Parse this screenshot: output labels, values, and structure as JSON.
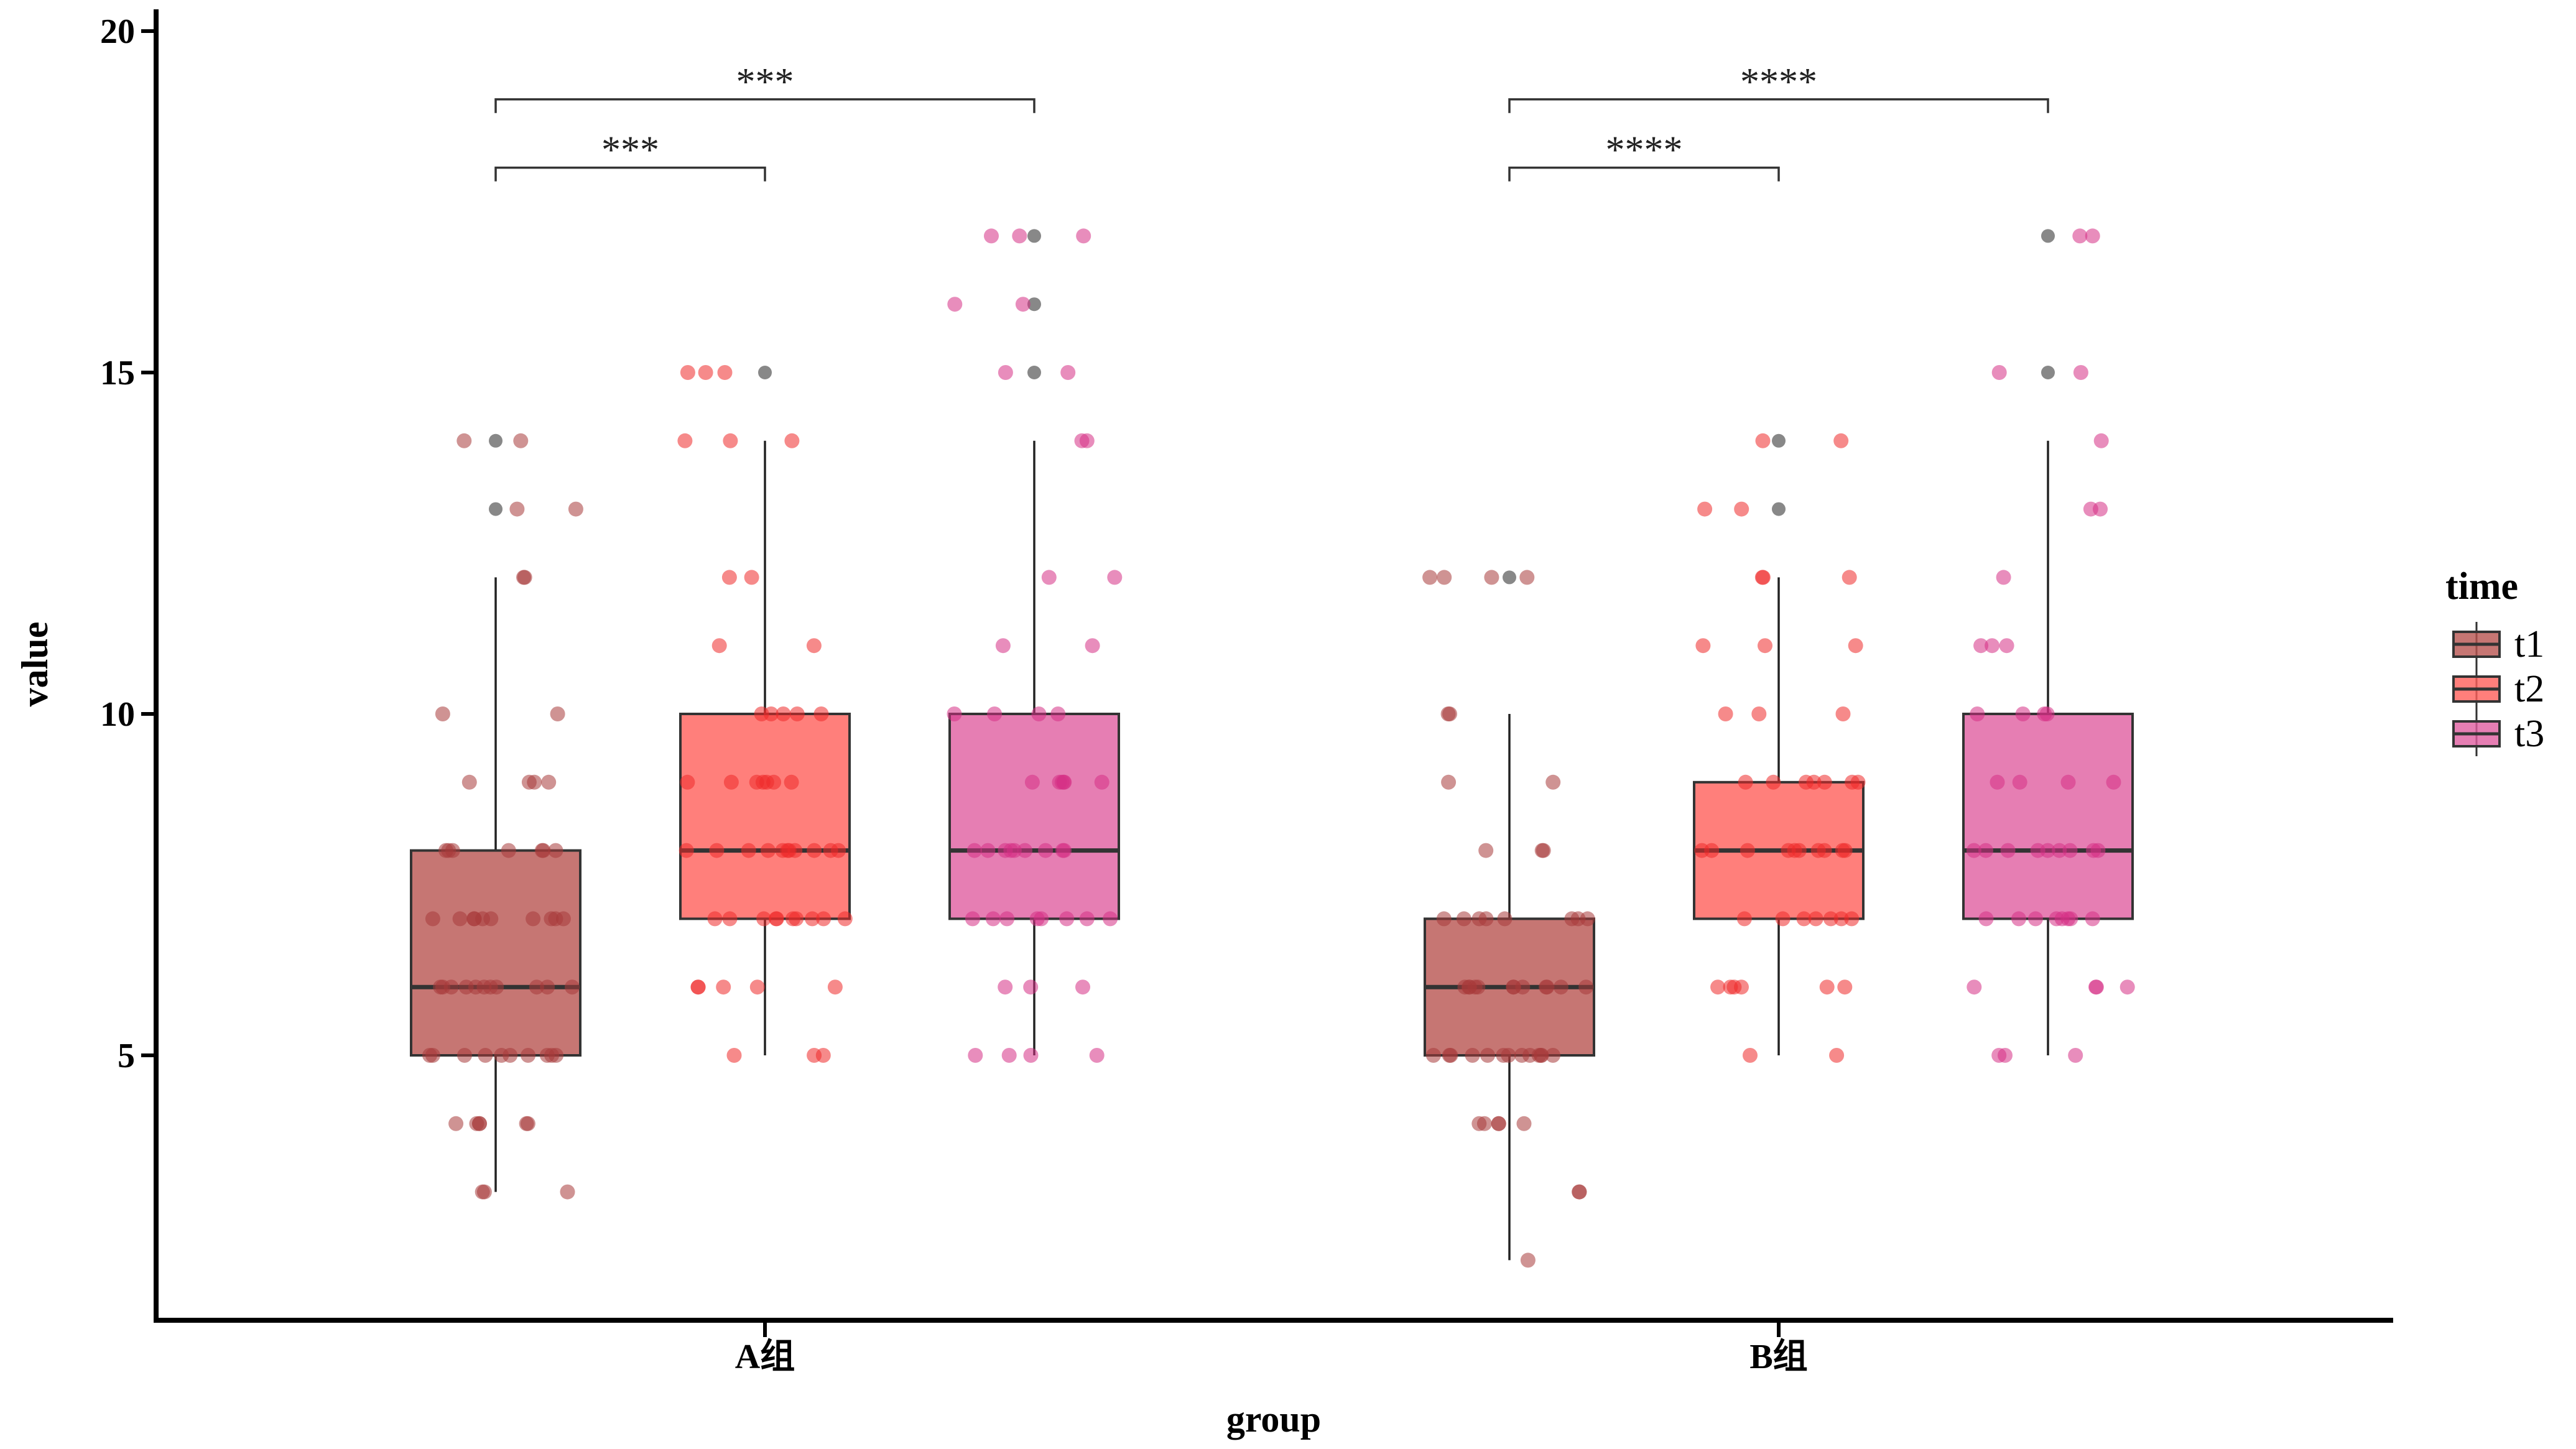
{
  "chart_data": {
    "type": "boxplot",
    "xlabel": "group",
    "ylabel": "value",
    "categories": [
      "A组",
      "B组"
    ],
    "y_ticks": [
      5,
      10,
      15,
      20
    ],
    "ylim": [
      1.5,
      20.2
    ],
    "legend": {
      "title": "time",
      "position": "right",
      "entries": [
        "t1",
        "t2",
        "t3"
      ]
    },
    "colors": {
      "t1": "#b85450",
      "t2": "#ff5f5a",
      "t3": "#e05ea0",
      "points_t1": "#a83a3a",
      "points_t2": "#ee2a2a",
      "points_t3": "#d52f85",
      "outlier": "#555555"
    },
    "series": [
      {
        "name": "t1",
        "boxes": [
          {
            "category": "A组",
            "whisker_low": 3,
            "q1": 5,
            "median": 6,
            "q3": 8,
            "whisker_high": 12,
            "outliers": [
              13,
              14
            ]
          },
          {
            "category": "B组",
            "whisker_low": 2,
            "q1": 5,
            "median": 6,
            "q3": 7,
            "whisker_high": 10,
            "outliers": [
              12
            ]
          }
        ]
      },
      {
        "name": "t2",
        "boxes": [
          {
            "category": "A组",
            "whisker_low": 5,
            "q1": 7,
            "median": 8,
            "q3": 10,
            "whisker_high": 14,
            "outliers": [
              15
            ]
          },
          {
            "category": "B组",
            "whisker_low": 5,
            "q1": 7,
            "median": 8,
            "q3": 9,
            "whisker_high": 12,
            "outliers": [
              13,
              14
            ]
          }
        ]
      },
      {
        "name": "t3",
        "boxes": [
          {
            "category": "A组",
            "whisker_low": 5,
            "q1": 7,
            "median": 8,
            "q3": 10,
            "whisker_high": 14,
            "outliers": [
              15,
              16,
              17
            ]
          },
          {
            "category": "B组",
            "whisker_low": 5,
            "q1": 7,
            "median": 8,
            "q3": 10,
            "whisker_high": 14,
            "outliers": [
              15,
              17
            ]
          }
        ]
      }
    ],
    "jitter_points": {
      "A组": {
        "t1": [
          14,
          14,
          13,
          13,
          12,
          12,
          10,
          10,
          9,
          9,
          9,
          9,
          8,
          8,
          8,
          8,
          8,
          8,
          8,
          7,
          7,
          7,
          7,
          7,
          7,
          7,
          7,
          7,
          7,
          6,
          6,
          6,
          6,
          6,
          6,
          6,
          6,
          6,
          6,
          6,
          5,
          5,
          5,
          5,
          5,
          5,
          5,
          5,
          5,
          5,
          4,
          4,
          4,
          4,
          4,
          4,
          3,
          3,
          3
        ],
        "t2": [
          15,
          15,
          15,
          14,
          14,
          14,
          12,
          12,
          11,
          11,
          10,
          10,
          10,
          10,
          10,
          9,
          9,
          9,
          9,
          9,
          9,
          9,
          8,
          8,
          8,
          8,
          8,
          8,
          8,
          8,
          8,
          8,
          8,
          7,
          7,
          7,
          7,
          7,
          7,
          7,
          7,
          7,
          7,
          6,
          6,
          6,
          6,
          6,
          5,
          5,
          5
        ],
        "t3": [
          17,
          17,
          17,
          16,
          16,
          15,
          15,
          14,
          14,
          12,
          12,
          11,
          11,
          10,
          10,
          10,
          10,
          9,
          9,
          9,
          9,
          9,
          9,
          8,
          8,
          8,
          8,
          8,
          8,
          8,
          8,
          8,
          7,
          7,
          7,
          7,
          7,
          7,
          7,
          7,
          6,
          6,
          6,
          5,
          5,
          5,
          5
        ]
      },
      "B组": {
        "t1": [
          12,
          12,
          12,
          12,
          10,
          10,
          9,
          9,
          8,
          8,
          8,
          7,
          7,
          7,
          7,
          7,
          7,
          7,
          7,
          6,
          6,
          6,
          6,
          6,
          6,
          6,
          6,
          6,
          6,
          6,
          6,
          5,
          5,
          5,
          5,
          5,
          5,
          5,
          5,
          5,
          5,
          5,
          5,
          5,
          4,
          4,
          4,
          4,
          4,
          3,
          3,
          2
        ],
        "t2": [
          14,
          14,
          13,
          13,
          12,
          12,
          12,
          11,
          11,
          11,
          10,
          10,
          10,
          9,
          9,
          9,
          9,
          9,
          9,
          9,
          8,
          8,
          8,
          8,
          8,
          8,
          8,
          8,
          8,
          8,
          7,
          7,
          7,
          7,
          7,
          7,
          7,
          6,
          6,
          6,
          6,
          6,
          6,
          5,
          5
        ],
        "t3": [
          17,
          17,
          15,
          15,
          14,
          13,
          13,
          12,
          11,
          11,
          11,
          10,
          10,
          10,
          10,
          9,
          9,
          9,
          9,
          8,
          8,
          8,
          8,
          8,
          8,
          8,
          8,
          8,
          7,
          7,
          7,
          7,
          7,
          7,
          7,
          7,
          6,
          6,
          6,
          6,
          5,
          5,
          5
        ]
      }
    },
    "significance": [
      {
        "category": "A组",
        "from": "t1",
        "to": "t2",
        "label": "***",
        "y": 18
      },
      {
        "category": "A组",
        "from": "t1",
        "to": "t3",
        "label": "***",
        "y": 19
      },
      {
        "category": "B组",
        "from": "t1",
        "to": "t2",
        "label": "****",
        "y": 18
      },
      {
        "category": "B组",
        "from": "t1",
        "to": "t3",
        "label": "****",
        "y": 19
      }
    ]
  }
}
